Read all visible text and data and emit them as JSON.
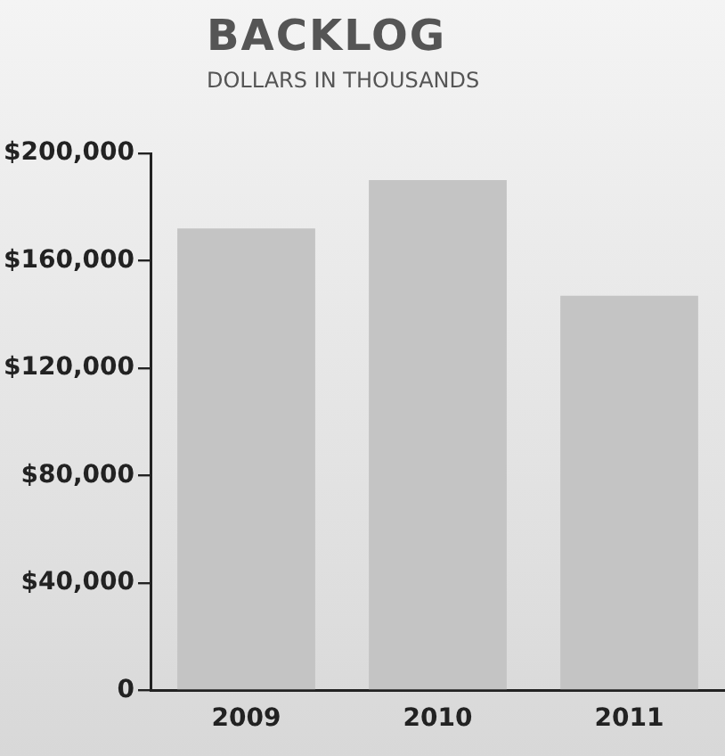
{
  "chart_data": {
    "type": "bar",
    "title": "BACKLOG",
    "subtitle": "DOLLARS IN THOUSANDS",
    "categories": [
      "2009",
      "2010",
      "2011"
    ],
    "values": [
      172000,
      190000,
      147000
    ],
    "color": "#c4c4c4",
    "ylim": [
      0,
      200000
    ],
    "yticks": [
      {
        "value": 0,
        "label": "0"
      },
      {
        "value": 40000,
        "label": "$40,000"
      },
      {
        "value": 80000,
        "label": "$80,000"
      },
      {
        "value": 120000,
        "label": "$120,000"
      },
      {
        "value": 160000,
        "label": "$160,000"
      },
      {
        "value": 200000,
        "label": "$200,000"
      }
    ],
    "grid": false,
    "legend": false
  }
}
